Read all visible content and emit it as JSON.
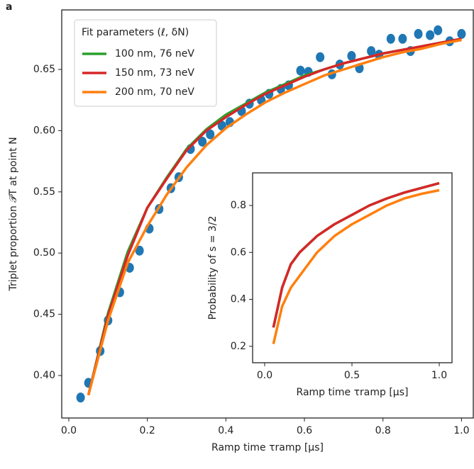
{
  "chart_data": [
    {
      "type": "line",
      "panel_label": "a",
      "x_label": "Ramp time τramp [µs]",
      "y_label": "Triplet proportion 𝒫T at point N",
      "legend_title": "Fit parameters (ℓ, δN)",
      "legend": "upper left",
      "xlim": [
        -0.018,
        1.03
      ],
      "ylim": [
        0.3653,
        0.6986
      ],
      "xticks": [
        {
          "value": 0,
          "label": "0.0"
        },
        0.2,
        0.4,
        0.6,
        0.8,
        {
          "value": 1,
          "label": "1.0"
        }
      ],
      "yticks": [
        {
          "value": 0.4,
          "label": "0.40"
        },
        0.45,
        {
          "value": 0.5,
          "label": "0.50"
        },
        0.55,
        {
          "value": 0.6,
          "label": "0.60"
        },
        0.65
      ],
      "series": [
        {
          "style": "scatter",
          "color": "#1f77b4",
          "x": [
            0.03,
            0.05,
            0.08,
            0.1,
            0.13,
            0.155,
            0.18,
            0.205,
            0.23,
            0.26,
            0.28,
            0.31,
            0.34,
            0.36,
            0.39,
            0.41,
            0.44,
            0.46,
            0.49,
            0.51,
            0.54,
            0.56,
            0.59,
            0.61,
            0.64,
            0.67,
            0.69,
            0.72,
            0.74,
            0.77,
            0.79,
            0.82,
            0.85,
            0.87,
            0.89,
            0.92,
            0.94,
            0.97,
            1.0
          ],
          "values": [
            0.382,
            0.394,
            0.42,
            0.445,
            0.468,
            0.488,
            0.502,
            0.52,
            0.536,
            0.553,
            0.562,
            0.585,
            0.591,
            0.597,
            0.604,
            0.607,
            0.616,
            0.622,
            0.625,
            0.63,
            0.634,
            0.637,
            0.649,
            0.648,
            0.66,
            0.646,
            0.654,
            0.661,
            0.651,
            0.665,
            0.662,
            0.675,
            0.675,
            0.665,
            0.679,
            0.678,
            0.682,
            0.673,
            0.679
          ]
        },
        {
          "style": "line",
          "name": "100 nm, 76 neV",
          "color": "#2ca02c",
          "x": [
            0.05,
            0.1,
            0.15,
            0.2,
            0.25,
            0.3,
            0.35,
            0.4,
            0.45,
            0.5,
            0.55,
            0.6,
            0.65,
            0.7,
            0.75,
            0.8,
            0.85,
            0.9,
            0.95,
            1.0
          ],
          "values": [
            0.384,
            0.451,
            0.501,
            0.537,
            0.562,
            0.585,
            0.601,
            0.613,
            0.622,
            0.631,
            0.638,
            0.645,
            0.65,
            0.655,
            0.659,
            0.663,
            0.666,
            0.669,
            0.672,
            0.675
          ]
        },
        {
          "style": "line",
          "name": "150 nm,  73 neV",
          "color": "#d62728",
          "x": [
            0.05,
            0.1,
            0.15,
            0.2,
            0.25,
            0.3,
            0.35,
            0.4,
            0.45,
            0.5,
            0.55,
            0.6,
            0.65,
            0.7,
            0.75,
            0.8,
            0.85,
            0.9,
            0.95,
            1.0
          ],
          "values": [
            0.384,
            0.449,
            0.498,
            0.537,
            0.561,
            0.584,
            0.6,
            0.611,
            0.621,
            0.63,
            0.637,
            0.644,
            0.65,
            0.655,
            0.659,
            0.663,
            0.666,
            0.669,
            0.672,
            0.675
          ]
        },
        {
          "style": "line",
          "name": "200 nm, 70 neV",
          "color": "#ff7f0e",
          "x": [
            0.05,
            0.1,
            0.15,
            0.2,
            0.25,
            0.3,
            0.35,
            0.4,
            0.45,
            0.5,
            0.55,
            0.6,
            0.65,
            0.7,
            0.75,
            0.8,
            0.85,
            0.9,
            0.95,
            1.0
          ],
          "values": [
            0.384,
            0.445,
            0.492,
            0.522,
            0.548,
            0.57,
            0.588,
            0.602,
            0.613,
            0.623,
            0.631,
            0.638,
            0.645,
            0.65,
            0.655,
            0.66,
            0.664,
            0.667,
            0.671,
            0.674
          ]
        }
      ]
    },
    {
      "type": "line",
      "x_label": "Ramp time τramp [µs]",
      "y_label": "Probability of s = 3/2",
      "xlim": [
        -0.069,
        1.073
      ],
      "ylim": [
        0.13,
        0.939
      ],
      "xticks": [
        {
          "value": 0,
          "label": "0.0"
        },
        0.5,
        {
          "value": 1,
          "label": "1.0"
        }
      ],
      "yticks": [
        0.2,
        0.4,
        0.6,
        0.8
      ],
      "series": [
        {
          "style": "line",
          "color": "#2ca02c",
          "x": [
            0.05,
            0.1,
            0.15,
            0.2,
            0.3,
            0.4,
            0.5,
            0.6,
            0.7,
            0.8,
            0.9,
            1.0
          ],
          "values": [
            0.28,
            0.45,
            0.55,
            0.6,
            0.67,
            0.72,
            0.76,
            0.8,
            0.83,
            0.855,
            0.875,
            0.895
          ]
        },
        {
          "style": "line",
          "color": "#d62728",
          "x": [
            0.05,
            0.1,
            0.15,
            0.2,
            0.3,
            0.4,
            0.5,
            0.6,
            0.7,
            0.8,
            0.9,
            1.0
          ],
          "values": [
            0.28,
            0.45,
            0.55,
            0.6,
            0.67,
            0.72,
            0.76,
            0.8,
            0.83,
            0.855,
            0.875,
            0.895
          ]
        },
        {
          "style": "line",
          "color": "#ff7f0e",
          "x": [
            0.05,
            0.1,
            0.15,
            0.2,
            0.3,
            0.4,
            0.5,
            0.6,
            0.7,
            0.8,
            0.9,
            1.0
          ],
          "values": [
            0.21,
            0.37,
            0.45,
            0.5,
            0.6,
            0.67,
            0.72,
            0.76,
            0.8,
            0.83,
            0.85,
            0.865
          ]
        }
      ]
    }
  ]
}
